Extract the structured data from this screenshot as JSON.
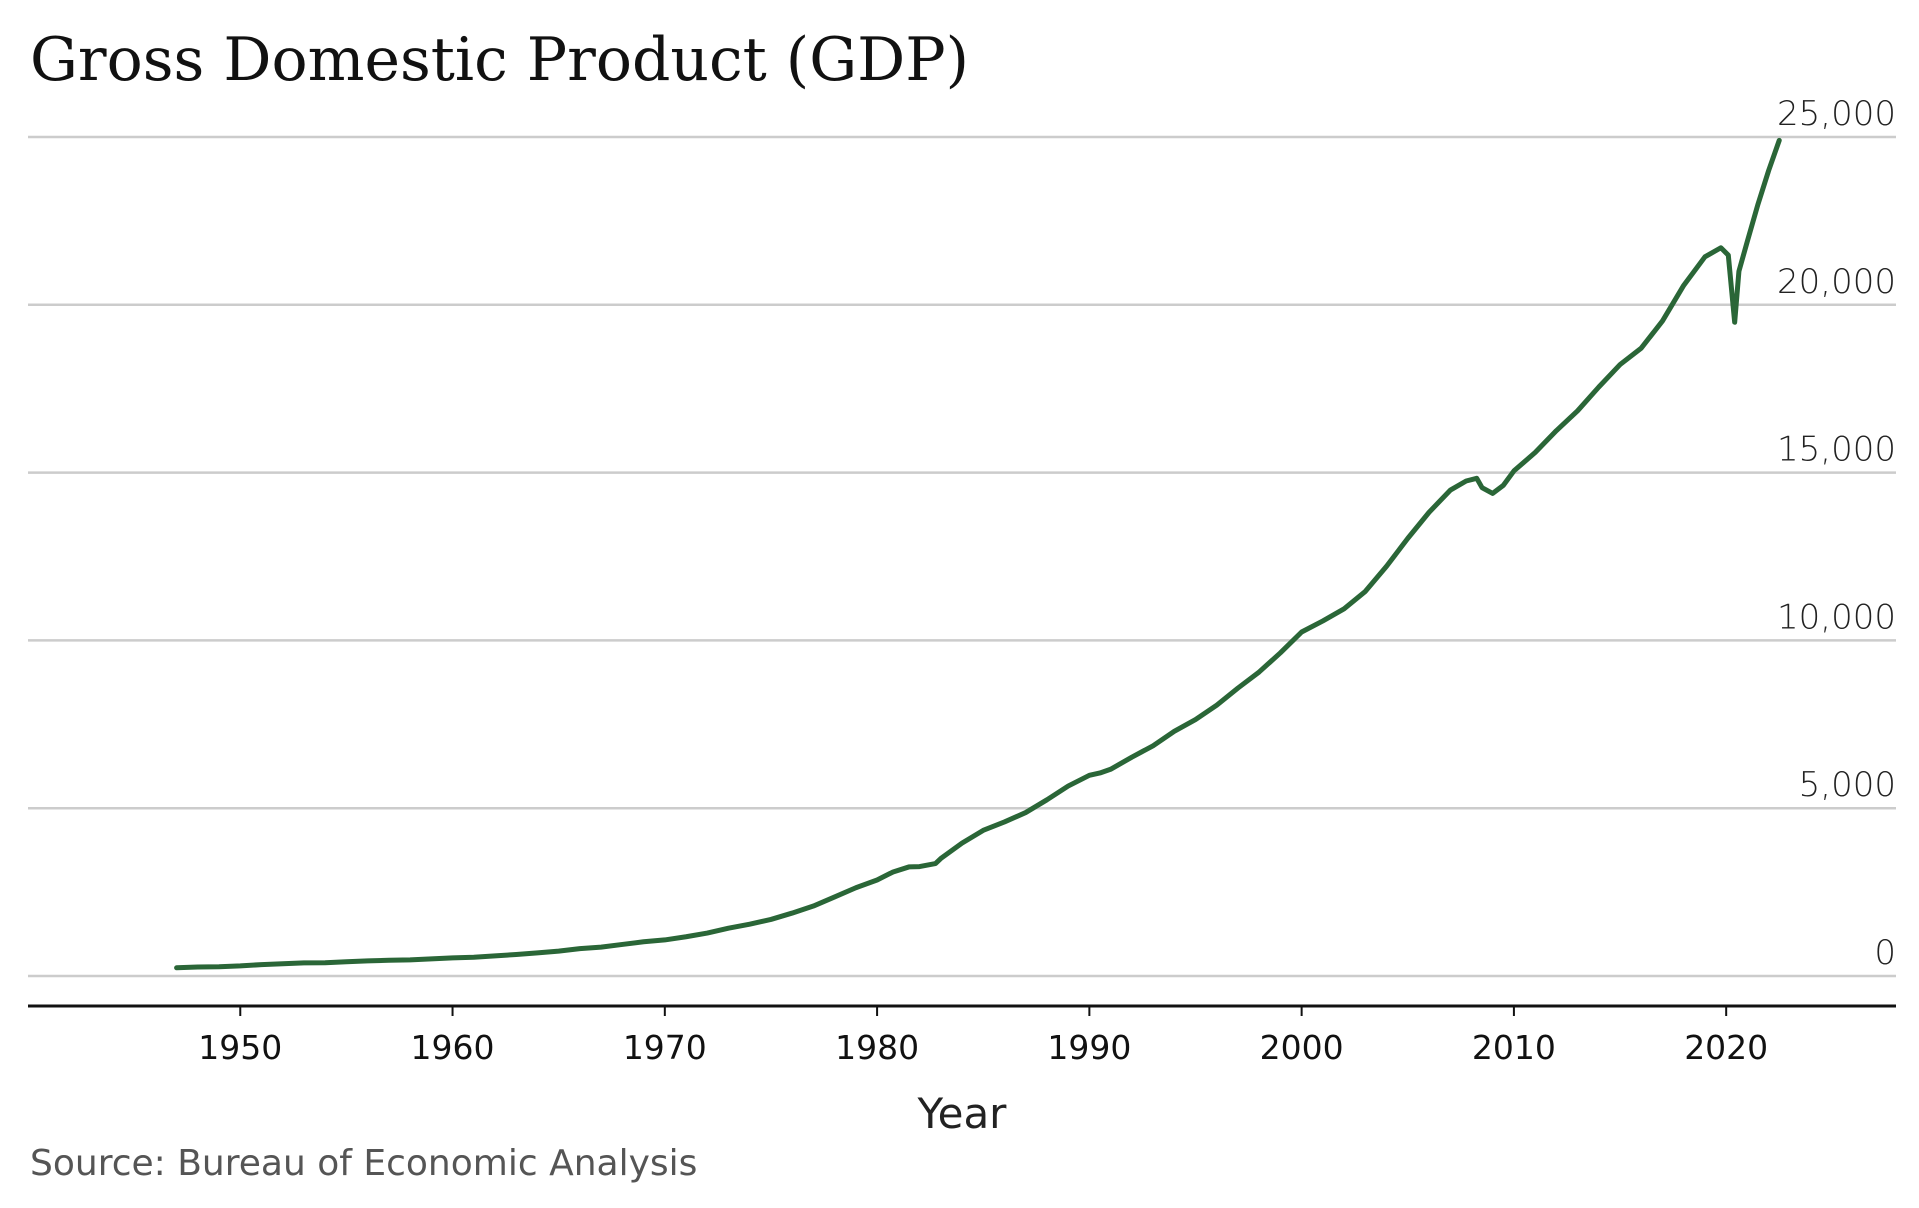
{
  "chart_data": {
    "type": "line",
    "title": "Gross Domestic Product (GDP)",
    "xlabel": "Year",
    "ylabel": "",
    "source": "Source: Bureau of Economic Analysis",
    "xlim": [
      1940,
      2028
    ],
    "ylim": [
      0,
      25000
    ],
    "xticks": [
      1950,
      1960,
      1970,
      1980,
      1990,
      2000,
      2010,
      2020
    ],
    "xtick_labels": [
      "1950",
      "1960",
      "1970",
      "1980",
      "1990",
      "2000",
      "2010",
      "2020"
    ],
    "yticks": [
      0,
      5000,
      10000,
      15000,
      20000,
      25000
    ],
    "ytick_labels": [
      "0",
      "5,000",
      "10,000",
      "15,000",
      "20,000",
      "25,000"
    ],
    "grid": true,
    "line_color": "#2a6637",
    "grid_color": "#cccccc",
    "series": [
      {
        "x": [
          1947,
          1948,
          1949,
          1950,
          1951,
          1952,
          1953,
          1954,
          1955,
          1956,
          1957,
          1958,
          1959,
          1960,
          1961,
          1962,
          1963,
          1964,
          1965,
          1966,
          1967,
          1968,
          1969,
          1970,
          1971,
          1972,
          1973,
          1974,
          1975,
          1976,
          1977,
          1978,
          1979,
          1980,
          1980.75,
          1981.5,
          1982,
          1982.75,
          1983,
          1984,
          1985,
          1986,
          1987,
          1988,
          1989,
          1990,
          1990.5,
          1991,
          1992,
          1993,
          1994,
          1995,
          1996,
          1997,
          1998,
          1999,
          2000,
          2001,
          2002,
          2003,
          2004,
          2005,
          2006,
          2007,
          2007.75,
          2008.25,
          2008.5,
          2009,
          2009.5,
          2010,
          2011,
          2012,
          2013,
          2014,
          2015,
          2016,
          2017,
          2018,
          2019,
          2019.75,
          2020.1,
          2020.4,
          2020.6,
          2021,
          2021.5,
          2022,
          2022.5
        ],
        "values": [
          245,
          270,
          275,
          300,
          340,
          365,
          390,
          395,
          425,
          450,
          470,
          480,
          510,
          540,
          560,
          600,
          640,
          690,
          740,
          815,
          860,
          940,
          1020,
          1075,
          1170,
          1280,
          1425,
          1545,
          1685,
          1875,
          2085,
          2355,
          2630,
          2860,
          3100,
          3250,
          3260,
          3350,
          3500,
          3960,
          4340,
          4590,
          4870,
          5250,
          5660,
          5980,
          6050,
          6160,
          6520,
          6860,
          7290,
          7640,
          8070,
          8580,
          9060,
          9630,
          10250,
          10580,
          10940,
          11460,
          12210,
          13040,
          13815,
          14475,
          14750,
          14830,
          14550,
          14380,
          14620,
          15050,
          15600,
          16250,
          16840,
          17550,
          18220,
          18710,
          19520,
          20580,
          21430,
          21700,
          21480,
          19480,
          21000,
          21900,
          23000,
          24000,
          24900
        ]
      }
    ]
  }
}
